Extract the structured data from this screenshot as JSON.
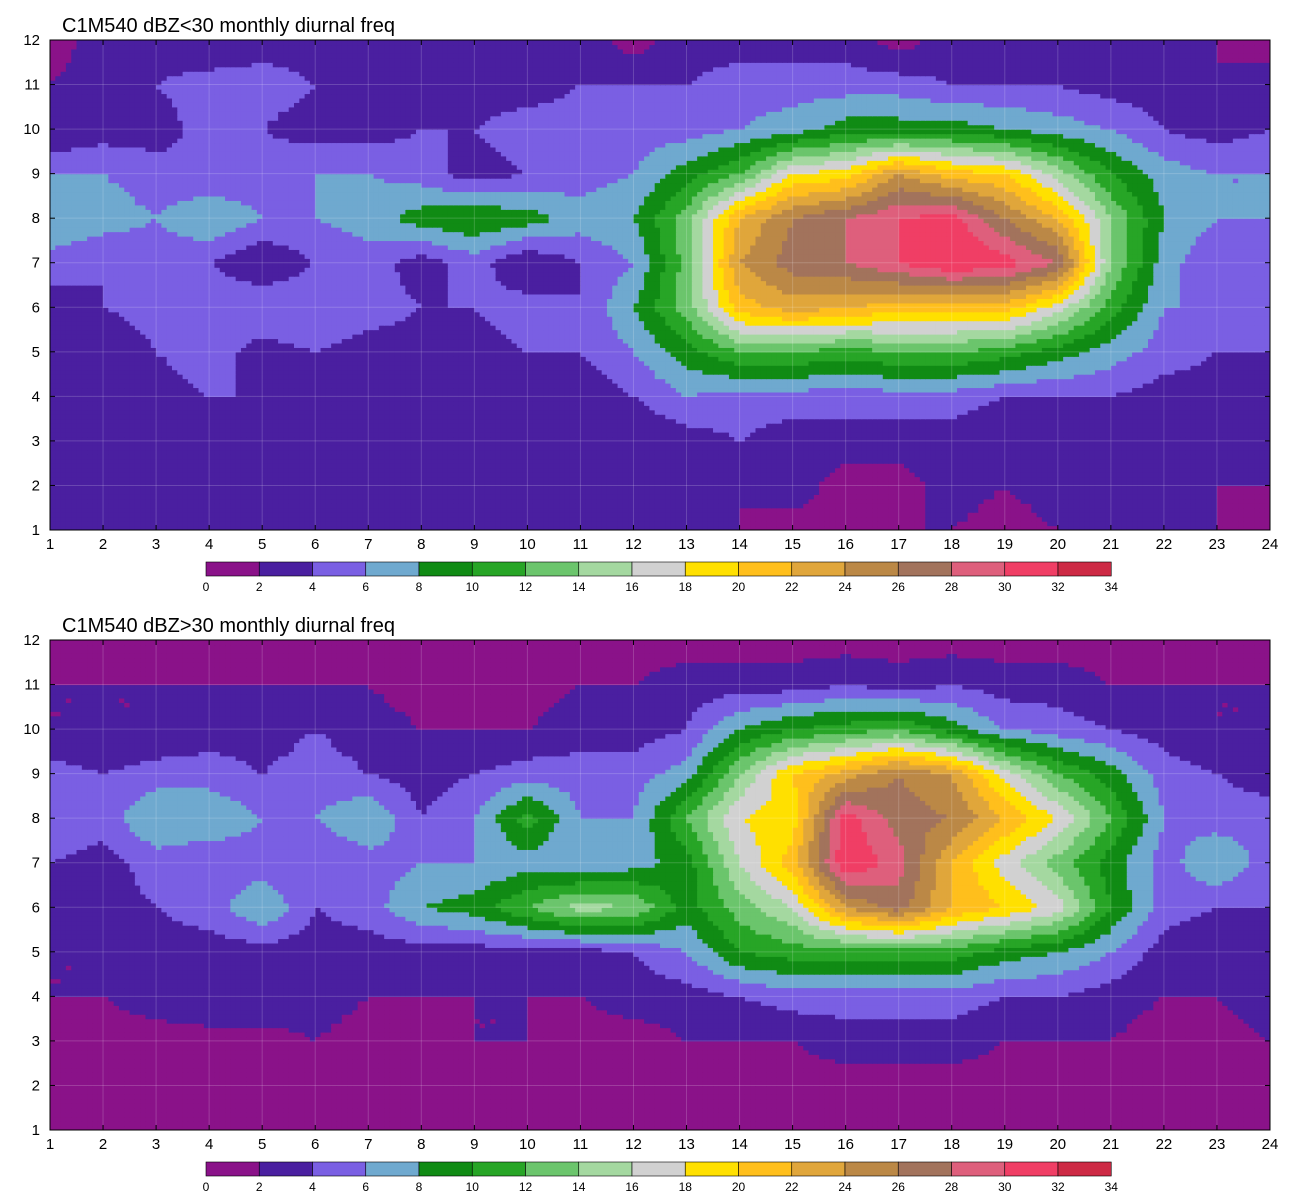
{
  "palette": [
    "#8a1289",
    "#4a1fa0",
    "#7a5fe3",
    "#6fa9cf",
    "#108b14",
    "#27a526",
    "#6bc56c",
    "#a4d8a0",
    "#d1d1d1",
    "#ffe000",
    "#ffbf1c",
    "#e0a63b",
    "#bb8846",
    "#a2735c",
    "#de5f7c",
    "#f03e65",
    "#cd2a45"
  ],
  "contour_line_color": "#f2a516",
  "chart_data": [
    {
      "type": "heatmap",
      "title": "C1M540 dBZ<30 monthly diurnal freq",
      "xlabel": "",
      "ylabel": "",
      "x": [
        1,
        2,
        3,
        4,
        5,
        6,
        7,
        8,
        9,
        10,
        11,
        12,
        13,
        14,
        15,
        16,
        17,
        18,
        19,
        20,
        21,
        22,
        23,
        24
      ],
      "y": [
        1,
        2,
        3,
        4,
        5,
        6,
        7,
        8,
        9,
        10,
        11,
        12
      ],
      "xlim": [
        1,
        24
      ],
      "ylim": [
        1,
        12
      ],
      "x_tick_labels": [
        "1",
        "2",
        "3",
        "4",
        "5",
        "6",
        "7",
        "8",
        "9",
        "10",
        "11",
        "12",
        "13",
        "14",
        "15",
        "16",
        "17",
        "18",
        "19",
        "20",
        "21",
        "22",
        "23",
        "24"
      ],
      "y_tick_labels": [
        "1",
        "2",
        "3",
        "4",
        "5",
        "6",
        "7",
        "8",
        "9",
        "10",
        "11",
        "12"
      ],
      "colorbar_levels": [
        0,
        2,
        4,
        6,
        8,
        10,
        12,
        14,
        16,
        18,
        20,
        22,
        24,
        26,
        28,
        30,
        32,
        34
      ],
      "colorbar_tick_labels": [
        "0",
        "2",
        "4",
        "6",
        "8",
        "10",
        "12",
        "14",
        "16",
        "18",
        "20",
        "22",
        "24",
        "26",
        "28",
        "30",
        "32",
        "34"
      ],
      "grid": true,
      "values": [
        [
          3,
          3,
          3,
          3,
          3,
          2,
          2,
          2,
          2,
          3,
          3,
          3,
          3,
          2,
          1,
          2,
          2,
          2,
          1,
          2,
          3,
          3,
          2,
          1
        ],
        [
          3,
          2,
          3,
          3,
          3,
          3,
          3,
          3,
          4,
          3,
          3,
          3,
          2,
          2,
          3,
          1,
          1,
          3,
          2,
          3,
          3,
          3,
          2,
          2
        ],
        [
          3,
          3,
          3,
          3,
          2,
          3,
          3,
          3,
          3,
          3,
          3,
          2,
          3,
          4,
          3,
          3,
          3,
          3,
          2,
          3,
          3,
          2,
          3,
          3
        ],
        [
          3,
          3,
          3,
          4,
          4,
          3,
          4,
          3,
          3,
          3,
          2,
          4,
          6,
          5,
          5,
          5,
          5,
          5,
          4,
          4,
          4,
          3,
          3,
          4
        ],
        [
          3,
          2,
          4,
          5,
          3,
          4,
          3,
          3,
          3,
          4,
          4,
          6,
          9,
          12,
          12,
          11,
          12,
          12,
          11,
          9,
          7,
          5,
          4,
          4
        ],
        [
          3,
          4,
          5,
          6,
          6,
          6,
          5,
          4,
          4,
          5,
          4,
          8,
          13,
          21,
          23,
          22,
          21,
          21,
          21,
          17,
          11,
          6,
          6,
          6
        ],
        [
          5,
          4,
          5,
          4,
          2,
          4,
          5,
          3,
          5,
          2,
          4,
          6,
          13,
          24,
          27,
          28,
          30,
          32,
          31,
          28,
          14,
          7,
          4,
          5
        ],
        [
          8,
          7,
          6,
          8,
          6,
          6,
          7,
          9,
          10,
          9,
          7,
          8,
          13,
          22,
          26,
          28,
          30,
          31,
          26,
          22,
          14,
          8,
          6,
          6
        ],
        [
          6,
          6,
          5,
          4,
          5,
          6,
          6,
          5,
          3,
          4,
          5,
          6,
          9,
          12,
          18,
          19,
          24,
          21,
          20,
          15,
          10,
          7,
          6,
          6
        ],
        [
          2,
          3,
          3,
          5,
          4,
          3,
          3,
          4,
          4,
          5,
          5,
          5,
          5,
          6,
          7,
          9,
          9,
          9,
          8,
          7,
          6,
          4,
          3,
          4
        ],
        [
          2,
          3,
          4,
          5,
          5,
          4,
          3,
          4,
          3,
          3,
          4,
          4,
          4,
          5,
          5,
          5,
          5,
          4,
          4,
          4,
          3,
          3,
          2,
          3
        ],
        [
          1,
          3,
          3,
          2,
          3,
          3,
          3,
          3,
          2,
          3,
          3,
          1,
          3,
          3,
          3,
          3,
          1,
          3,
          3,
          2,
          3,
          3,
          2,
          1
        ]
      ]
    },
    {
      "type": "heatmap",
      "title": "C1M540 dBZ>30 monthly diurnal freq",
      "xlabel": "",
      "ylabel": "",
      "x": [
        1,
        2,
        3,
        4,
        5,
        6,
        7,
        8,
        9,
        10,
        11,
        12,
        13,
        14,
        15,
        16,
        17,
        18,
        19,
        20,
        21,
        22,
        23,
        24
      ],
      "y": [
        1,
        2,
        3,
        4,
        5,
        6,
        7,
        8,
        9,
        10,
        11,
        12
      ],
      "xlim": [
        1,
        24
      ],
      "ylim": [
        1,
        12
      ],
      "x_tick_labels": [
        "1",
        "2",
        "3",
        "4",
        "5",
        "6",
        "7",
        "8",
        "9",
        "10",
        "11",
        "12",
        "13",
        "14",
        "15",
        "16",
        "17",
        "18",
        "19",
        "20",
        "21",
        "22",
        "23",
        "24"
      ],
      "y_tick_labels": [
        "1",
        "2",
        "3",
        "4",
        "5",
        "6",
        "7",
        "8",
        "9",
        "10",
        "11",
        "12"
      ],
      "colorbar_levels": [
        0,
        2,
        4,
        6,
        8,
        10,
        12,
        14,
        16,
        18,
        20,
        22,
        24,
        26,
        28,
        30,
        32,
        34
      ],
      "colorbar_tick_labels": [
        "0",
        "2",
        "4",
        "6",
        "8",
        "10",
        "12",
        "14",
        "16",
        "18",
        "20",
        "22",
        "24",
        "26",
        "28",
        "30",
        "32",
        "34"
      ],
      "grid": true,
      "values": [
        [
          1,
          1,
          1,
          1,
          1,
          1,
          1,
          1,
          1,
          1,
          1,
          1,
          1,
          1,
          1,
          1,
          1,
          1,
          1,
          1,
          1,
          1,
          1,
          1
        ],
        [
          1,
          1,
          1,
          1,
          2,
          2,
          1,
          1,
          1,
          1,
          1,
          1,
          1,
          1,
          1,
          1,
          1,
          1,
          1,
          1,
          1,
          1,
          1,
          1
        ],
        [
          2,
          1,
          1,
          1,
          1,
          2,
          1,
          1,
          2,
          2,
          1,
          1,
          2,
          2,
          2,
          3,
          3,
          3,
          2,
          2,
          2,
          1,
          1,
          2
        ],
        [
          2,
          2,
          3,
          4,
          4,
          3,
          2,
          2,
          2,
          2,
          2,
          3,
          3,
          4,
          5,
          5,
          5,
          5,
          4,
          4,
          3,
          2,
          2,
          3
        ],
        [
          2,
          2,
          3,
          3,
          3,
          3,
          3,
          3,
          3,
          3,
          3,
          4,
          6,
          10,
          11,
          11,
          11,
          11,
          9,
          8,
          6,
          3,
          2,
          3
        ],
        [
          3,
          3,
          4,
          5,
          8,
          4,
          5,
          8,
          9,
          12,
          15,
          14,
          9,
          13,
          16,
          24,
          27,
          22,
          20,
          17,
          10,
          5,
          4,
          4
        ],
        [
          4,
          3,
          5,
          4,
          5,
          4,
          5,
          6,
          6,
          7,
          6,
          7,
          9,
          16,
          21,
          32,
          29,
          22,
          17,
          13,
          9,
          5,
          8,
          5
        ],
        [
          6,
          5,
          8,
          8,
          6,
          6,
          8,
          4,
          6,
          11,
          6,
          6,
          12,
          18,
          19,
          31,
          27,
          26,
          22,
          18,
          12,
          6,
          5,
          5
        ],
        [
          5,
          4,
          5,
          5,
          4,
          5,
          4,
          3,
          4,
          5,
          5,
          5,
          7,
          14,
          20,
          23,
          26,
          24,
          17,
          12,
          9,
          5,
          4,
          3
        ],
        [
          2,
          2,
          2,
          3,
          3,
          4,
          3,
          2,
          2,
          2,
          3,
          3,
          4,
          8,
          10,
          11,
          12,
          9,
          6,
          5,
          4,
          3,
          2,
          2
        ],
        [
          2,
          2,
          2,
          2,
          2,
          2,
          2,
          1,
          1,
          1,
          2,
          2,
          3,
          3,
          3,
          4,
          3,
          4,
          3,
          3,
          2,
          2,
          2,
          2
        ],
        [
          1,
          1,
          1,
          1,
          1,
          1,
          1,
          1,
          1,
          1,
          1,
          1,
          1,
          1,
          1,
          1,
          1,
          1,
          1,
          1,
          1,
          1,
          1,
          1
        ]
      ]
    }
  ]
}
